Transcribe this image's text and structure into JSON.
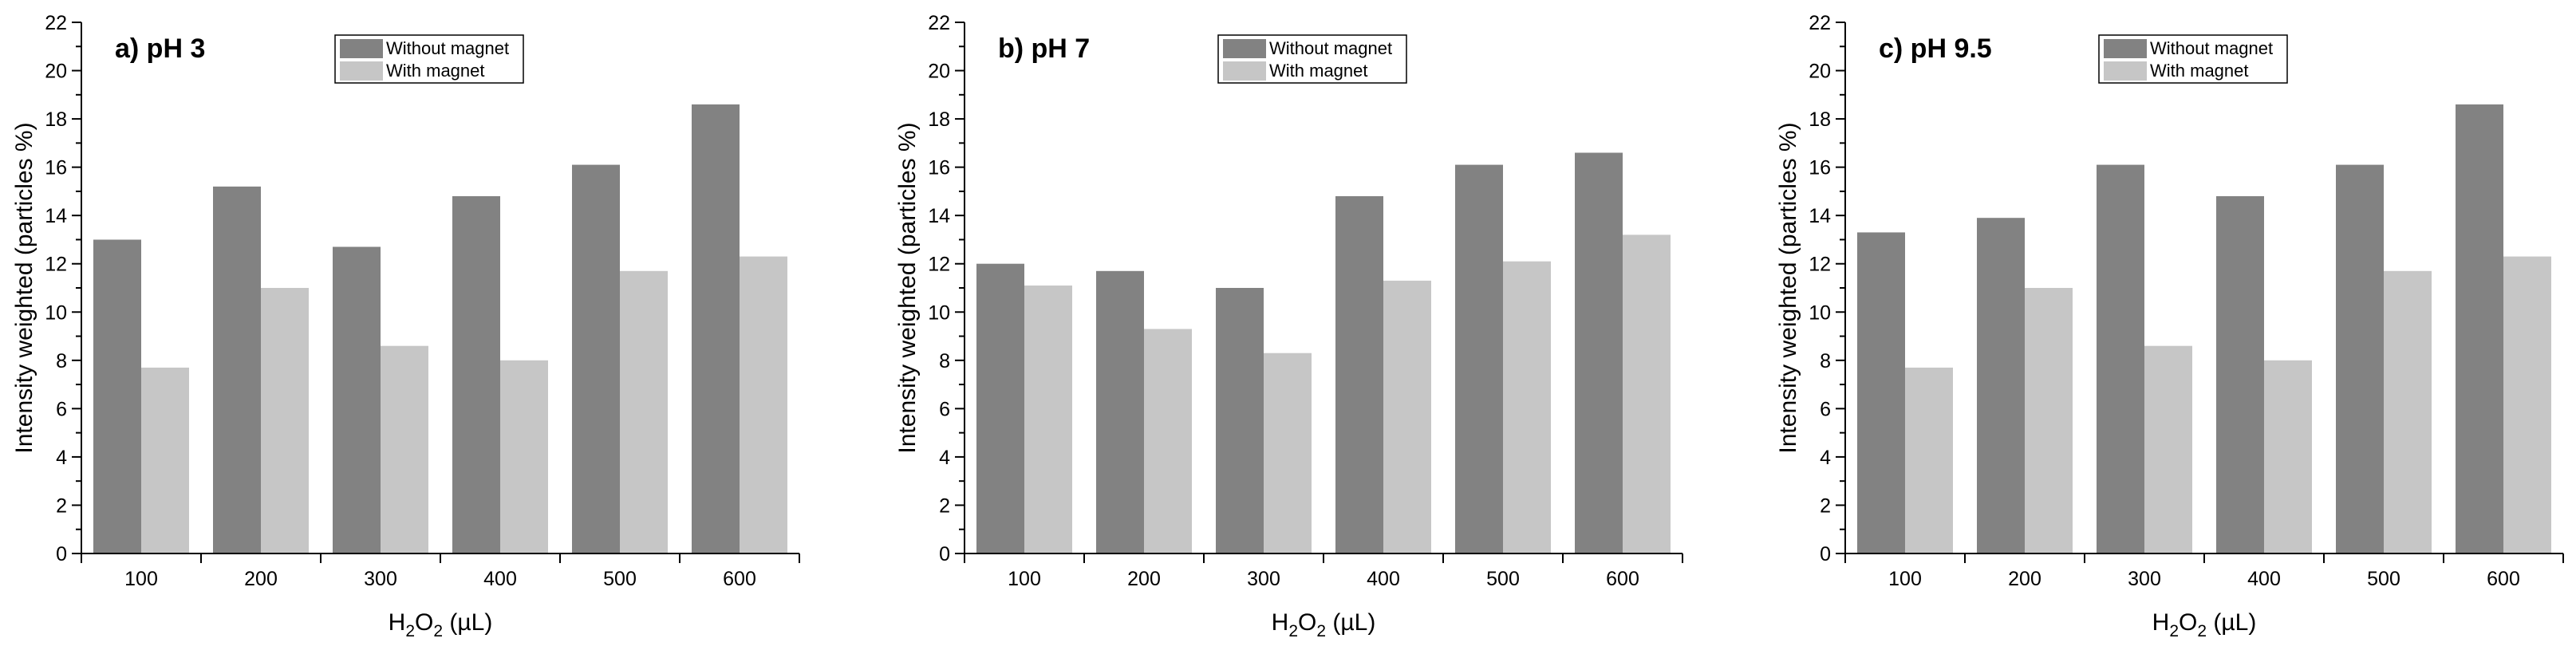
{
  "chart_data": [
    {
      "type": "bar",
      "title": "a) pH 3",
      "xlabel": "H2O2 (µL)",
      "ylabel": "Intensity weighted (particles %)",
      "categories": [
        "100",
        "200",
        "300",
        "400",
        "500",
        "600"
      ],
      "series": [
        {
          "name": "Without magnet",
          "values": [
            13.0,
            15.2,
            12.7,
            14.8,
            16.1,
            18.6
          ]
        },
        {
          "name": "With magnet",
          "values": [
            7.7,
            11.0,
            8.6,
            8.0,
            11.7,
            12.3
          ]
        }
      ],
      "ylim": [
        0,
        22
      ],
      "yticks": [
        0,
        2,
        4,
        6,
        8,
        10,
        12,
        14,
        16,
        18,
        20,
        22
      ],
      "legend_position": "top",
      "grid": false
    },
    {
      "type": "bar",
      "title": "b) pH 7",
      "xlabel": "H2O2 (µL)",
      "ylabel": "Intensity weighted (particles %)",
      "categories": [
        "100",
        "200",
        "300",
        "400",
        "500",
        "600"
      ],
      "series": [
        {
          "name": "Without magnet",
          "values": [
            12.0,
            11.7,
            11.0,
            14.8,
            16.1,
            16.6
          ]
        },
        {
          "name": "With magnet",
          "values": [
            11.1,
            9.3,
            8.3,
            11.3,
            12.1,
            13.2
          ]
        }
      ],
      "ylim": [
        0,
        22
      ],
      "yticks": [
        0,
        2,
        4,
        6,
        8,
        10,
        12,
        14,
        16,
        18,
        20,
        22
      ],
      "legend_position": "top",
      "grid": false
    },
    {
      "type": "bar",
      "title": "c) pH 9.5",
      "xlabel": "H2O2 (µL)",
      "ylabel": "Intensity weighted (particles %)",
      "categories": [
        "100",
        "200",
        "300",
        "400",
        "500",
        "600"
      ],
      "series": [
        {
          "name": "Without magnet",
          "values": [
            13.3,
            13.9,
            16.1,
            14.8,
            16.1,
            18.6
          ]
        },
        {
          "name": "With magnet",
          "values": [
            7.7,
            11.0,
            8.6,
            8.0,
            11.7,
            12.3
          ]
        }
      ],
      "ylim": [
        0,
        22
      ],
      "yticks": [
        0,
        2,
        4,
        6,
        8,
        10,
        12,
        14,
        16,
        18,
        20,
        22
      ],
      "legend_position": "top",
      "grid": false
    }
  ],
  "colors": {
    "without_magnet": "#828282",
    "with_magnet": "#c6c6c6",
    "axis": "#000000"
  }
}
